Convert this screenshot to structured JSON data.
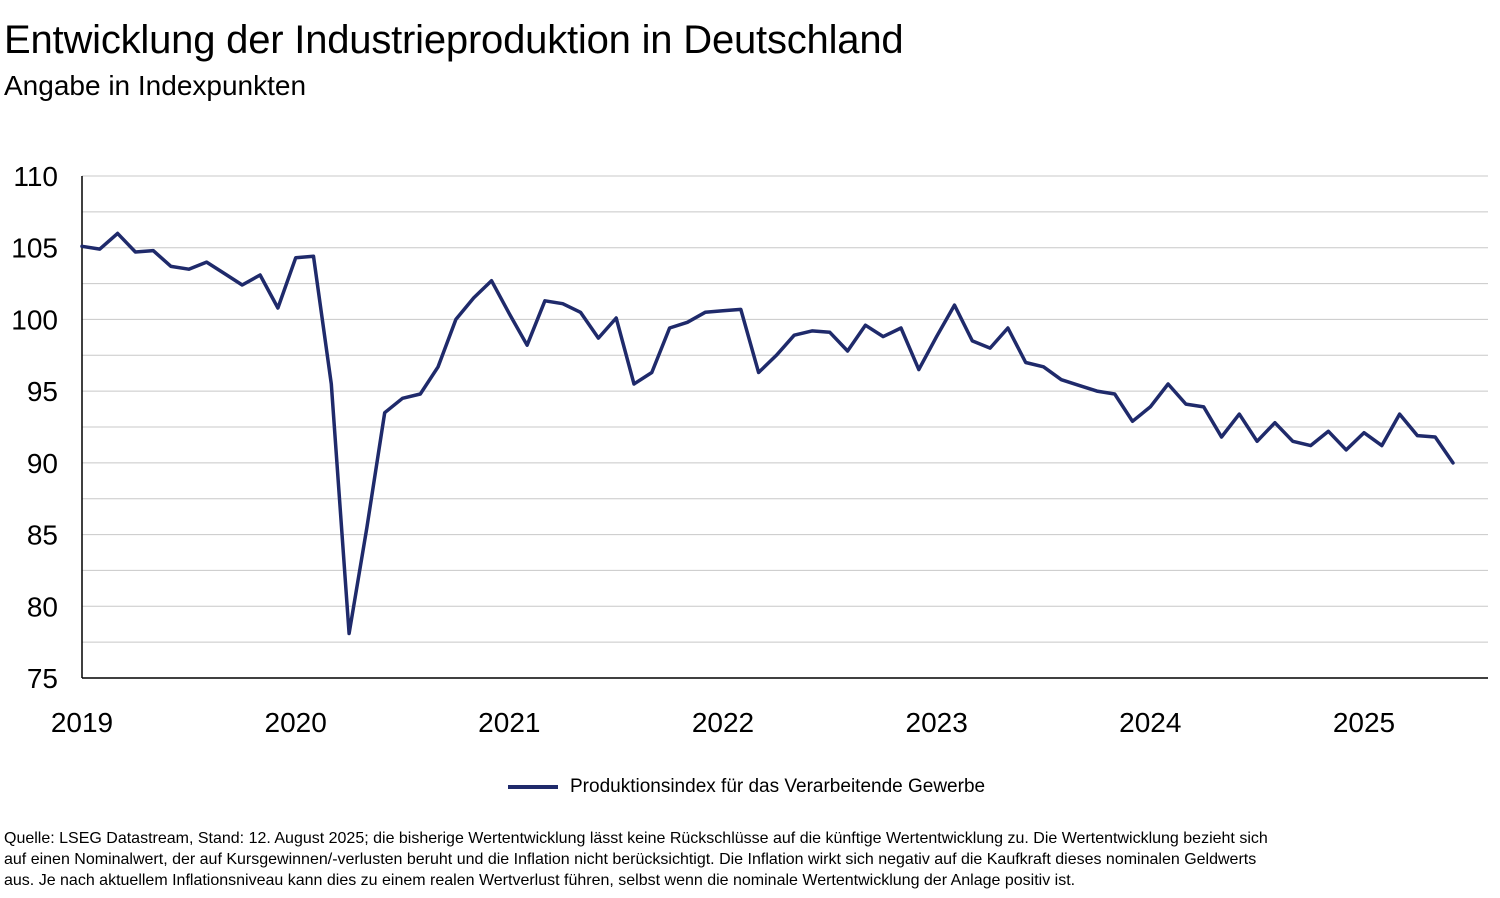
{
  "header": {
    "title": "Entwicklung der Industrieproduktion in Deutschland",
    "subtitle": "Angabe in Indexpunkten"
  },
  "legend": {
    "label": "Produktionsindex für das Verarbeitende Gewerbe"
  },
  "source": {
    "lines": [
      "Quelle: LSEG Datastream, Stand: 12. August 2025; die bisherige Wertentwicklung lässt keine Rückschlüsse auf die künftige Wertentwicklung zu. Die Wertentwicklung bezieht sich",
      "auf einen Nominalwert, der auf Kursgewinnen/-verlusten beruht und die Inflation nicht berücksichtigt. Die Inflation wirkt sich negativ auf die Kaufkraft dieses nominalen Geldwerts",
      "aus. Je nach aktuellem Inflationsniveau kann dies zu einem realen Wertverlust führen, selbst wenn die nominale Wertentwicklung der Anlage positiv ist."
    ]
  },
  "colors": {
    "series": "#1f2a6b",
    "grid": "#c8c8c8",
    "axis": "#000000"
  },
  "chart_data": {
    "type": "line",
    "x_start": "2019-01",
    "frequency": "monthly",
    "ylim": [
      75,
      110
    ],
    "yticks": [
      75,
      80,
      85,
      90,
      95,
      100,
      105,
      110
    ],
    "ygrid_step": 2.5,
    "xtick_labels": [
      "2019",
      "2020",
      "2021",
      "2022",
      "2023",
      "2024",
      "2025"
    ],
    "grid": true,
    "legend_position": "bottom-center",
    "series": [
      {
        "name": "Produktionsindex für das Verarbeitende Gewerbe",
        "values": [
          105.1,
          104.9,
          106.0,
          104.7,
          104.8,
          103.7,
          103.5,
          104.0,
          103.2,
          102.4,
          103.1,
          100.8,
          104.3,
          104.4,
          95.5,
          78.1,
          85.5,
          93.5,
          94.5,
          94.8,
          96.7,
          100.0,
          101.5,
          102.7,
          100.4,
          98.2,
          101.3,
          101.1,
          100.5,
          98.7,
          100.1,
          95.5,
          96.3,
          99.4,
          99.8,
          100.5,
          100.6,
          100.7,
          96.3,
          97.5,
          98.9,
          99.2,
          99.1,
          97.8,
          99.6,
          98.8,
          99.4,
          96.5,
          98.8,
          101.0,
          98.5,
          98.0,
          99.4,
          97.0,
          96.7,
          95.8,
          95.4,
          95.0,
          94.8,
          92.9,
          93.9,
          95.5,
          94.1,
          93.9,
          91.8,
          93.4,
          91.5,
          92.8,
          91.5,
          91.2,
          92.2,
          90.9,
          92.1,
          91.2,
          93.4,
          91.9,
          91.8,
          90.0
        ]
      }
    ]
  }
}
